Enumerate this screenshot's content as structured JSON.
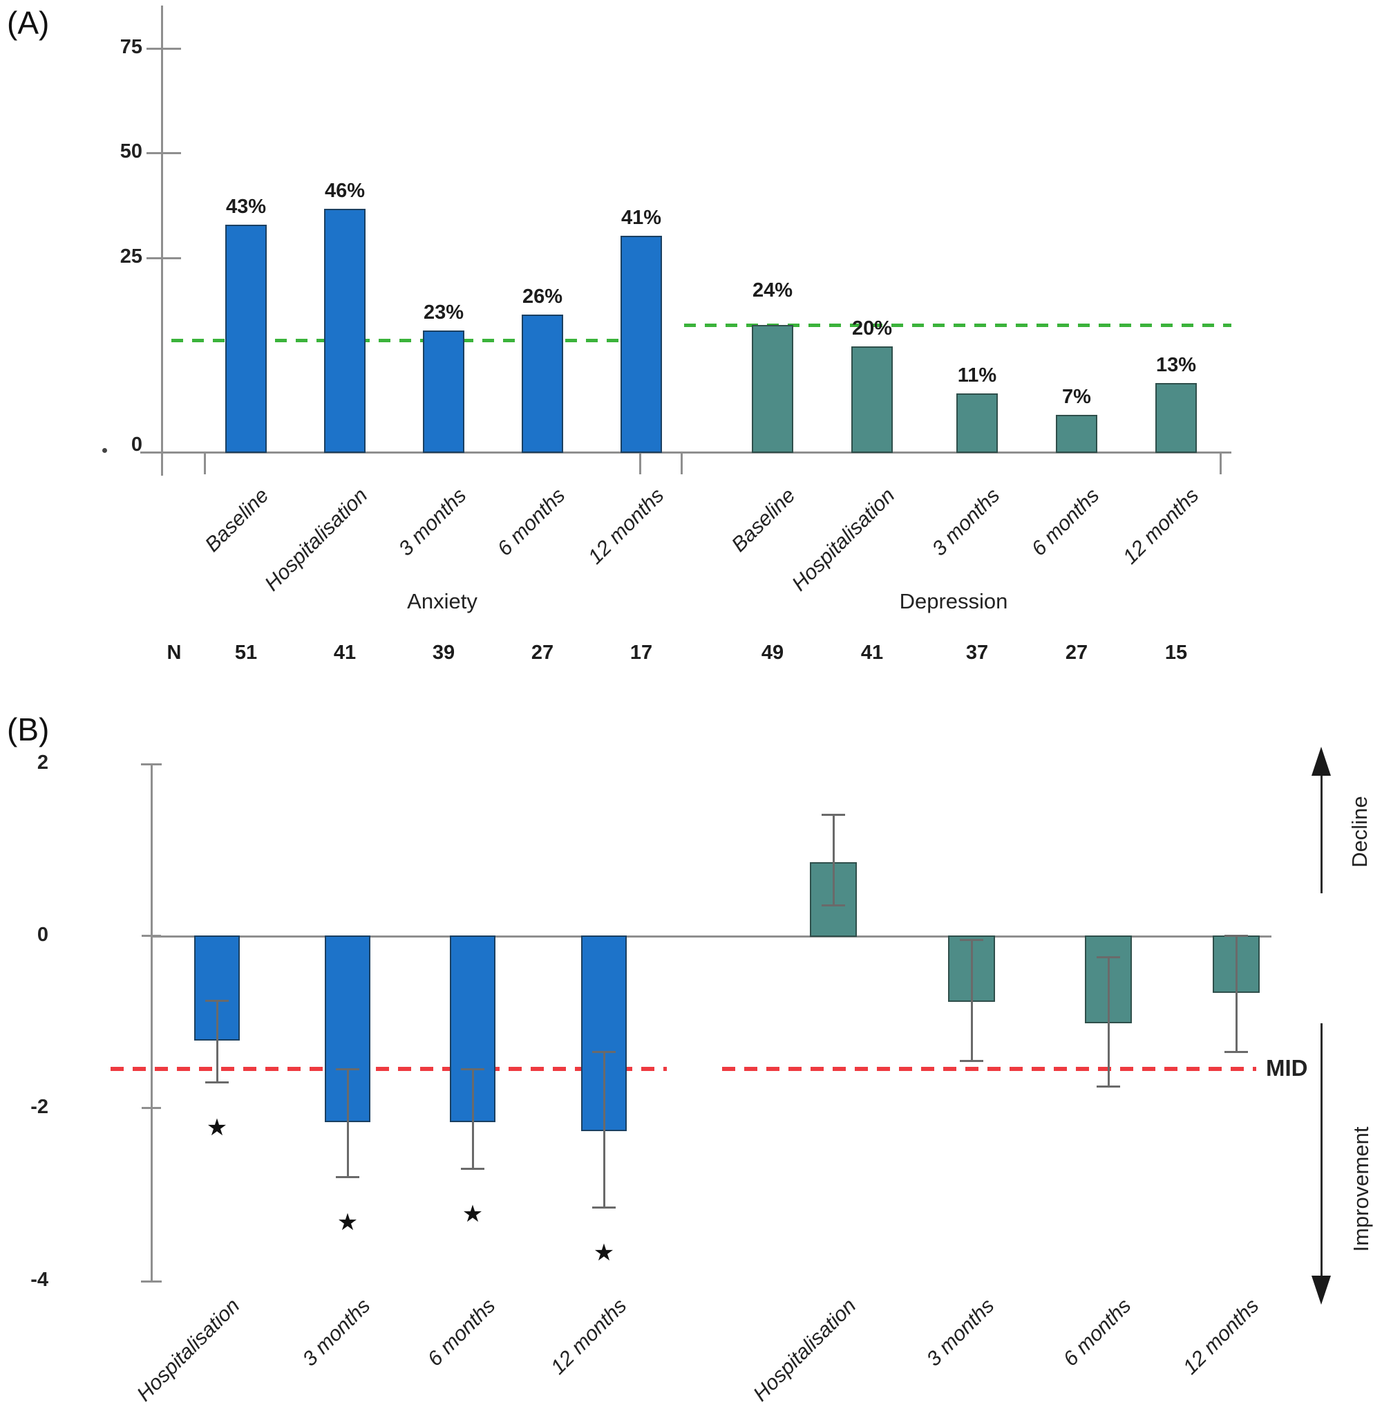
{
  "figure": {
    "panel_a_label": "(A)",
    "panel_b_label": "(B)"
  },
  "colors": {
    "anxiety_blue": "#1d73c9",
    "anxiety_blue_border": "#1b4061",
    "depression_teal": "#4e8c87",
    "depression_teal_border": "#2f4f4b",
    "green_dashed": "#3bb33b",
    "red_dashed": "#ee3a40",
    "axis_gray": "#8f8f8f",
    "error_gray": "#6a6a6a"
  },
  "chart_data": [
    {
      "id": "A",
      "type": "bar",
      "title": "",
      "ylabel": "",
      "ylim": [
        0,
        75
      ],
      "yticks": [
        0,
        25,
        50,
        75
      ],
      "ytick_labels": [
        "0",
        "25",
        "50",
        "75"
      ],
      "n_row_label": "N",
      "groups": [
        {
          "name": "Anxiety",
          "color_key": "anxiety_blue",
          "categories": [
            "Baseline",
            "Hospitalisation",
            "3 months",
            "6 months",
            "12 months"
          ],
          "values_pct": [
            43,
            46,
            23,
            26,
            41
          ],
          "bar_labels": [
            "43%",
            "46%",
            "23%",
            "26%",
            "41%"
          ],
          "n_values": [
            51,
            41,
            39,
            27,
            17
          ],
          "reference_line_pct": 21
        },
        {
          "name": "Depression",
          "color_key": "depression_teal",
          "categories": [
            "Baseline",
            "Hospitalisation",
            "3 months",
            "6 months",
            "12 months"
          ],
          "values_pct": [
            24,
            20,
            11,
            7,
            13
          ],
          "bar_labels": [
            "24%",
            "20%",
            "11%",
            "7%",
            "13%"
          ],
          "n_values": [
            49,
            41,
            37,
            27,
            15
          ],
          "reference_line_pct": 24
        }
      ]
    },
    {
      "id": "B",
      "type": "bar",
      "ylim": [
        -4,
        2
      ],
      "yticks": [
        2,
        0,
        -2,
        -4
      ],
      "ytick_labels": [
        "2",
        "0",
        "-2",
        "-4"
      ],
      "mid_line_value": -1.55,
      "mid_label": "MID",
      "decline_label": "Decline",
      "improvement_label": "Improvement",
      "star_glyph": "★",
      "groups": [
        {
          "name": "Anxiety",
          "color_key": "anxiety_blue",
          "categories": [
            "Hospitalisation",
            "3 months",
            "6 months",
            "12 months"
          ],
          "values": [
            -1.2,
            -2.15,
            -2.15,
            -2.25
          ],
          "ci_high": [
            -0.75,
            -1.55,
            -1.55,
            -1.35
          ],
          "ci_low": [
            -1.7,
            -2.8,
            -2.7,
            -3.15
          ],
          "significant": [
            true,
            true,
            true,
            true
          ]
        },
        {
          "name": "Depression",
          "color_key": "depression_teal",
          "categories": [
            "Hospitalisation",
            "3 months",
            "6 months",
            "12 months"
          ],
          "values": [
            0.85,
            -0.75,
            -1.0,
            -0.65
          ],
          "ci_high": [
            1.4,
            -0.05,
            -0.25,
            0.0
          ],
          "ci_low": [
            0.35,
            -1.45,
            -1.75,
            -1.35
          ],
          "significant": [
            false,
            false,
            false,
            false
          ]
        }
      ]
    }
  ]
}
